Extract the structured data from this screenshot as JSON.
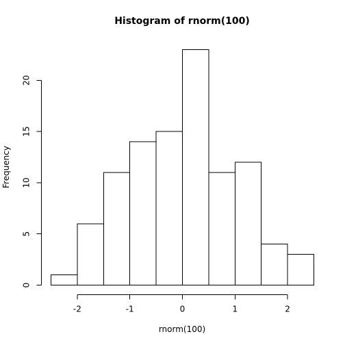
{
  "chart_data": {
    "type": "bar",
    "title": "Histogram of rnorm(100)",
    "xlabel": "rnorm(100)",
    "ylabel": "Frequency",
    "bins": [
      {
        "start": -2.5,
        "end": -2.0,
        "count": 1
      },
      {
        "start": -2.0,
        "end": -1.5,
        "count": 6
      },
      {
        "start": -1.5,
        "end": -1.0,
        "count": 11
      },
      {
        "start": -1.0,
        "end": -0.5,
        "count": 14
      },
      {
        "start": -0.5,
        "end": 0.0,
        "count": 15
      },
      {
        "start": 0.0,
        "end": 0.5,
        "count": 23
      },
      {
        "start": 0.5,
        "end": 1.0,
        "count": 11
      },
      {
        "start": 1.0,
        "end": 1.5,
        "count": 12
      },
      {
        "start": 1.5,
        "end": 2.0,
        "count": 4
      },
      {
        "start": 2.0,
        "end": 2.5,
        "count": 3
      }
    ],
    "xticks": [
      -2,
      -1,
      0,
      1,
      2
    ],
    "xtick_labels": [
      "-2",
      "-1",
      "0",
      "1",
      "2"
    ],
    "yticks": [
      0,
      5,
      10,
      15,
      20
    ],
    "ytick_labels": [
      "0",
      "5",
      "10",
      "15",
      "20"
    ],
    "xlim": [
      -2.5,
      2.5
    ],
    "ylim": [
      0,
      23
    ],
    "grid": false,
    "legend": "none"
  }
}
